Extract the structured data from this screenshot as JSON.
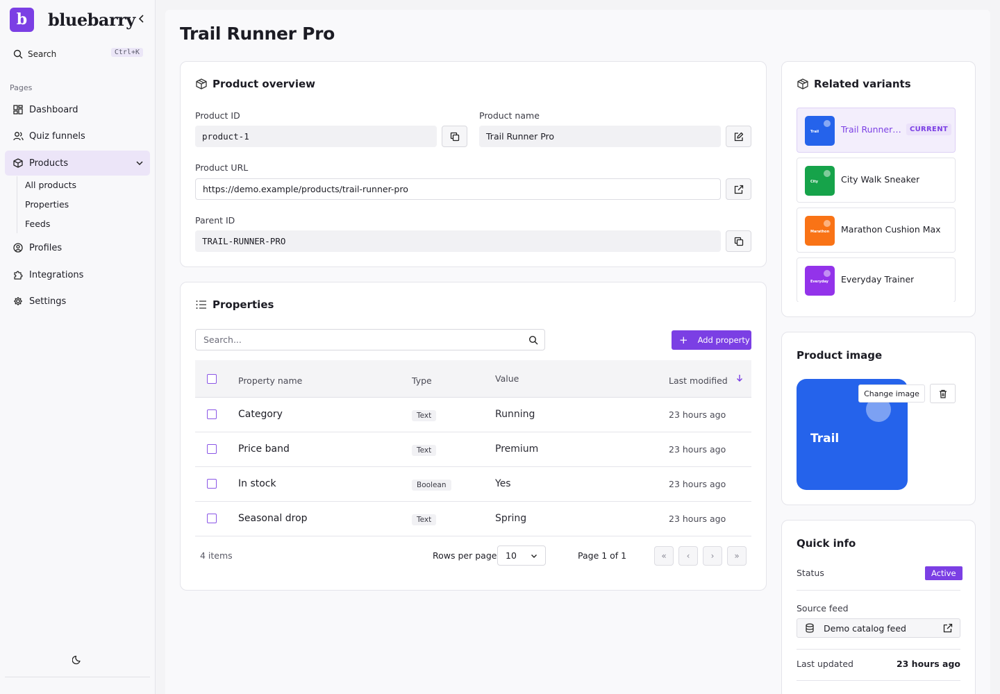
{
  "brand": {
    "logo_letter": "b",
    "name": "bluebarry",
    "accent": "#7b3fe4"
  },
  "sidebar": {
    "search_label": "Search",
    "search_shortcut": "Ctrl+K",
    "section_label": "Pages",
    "items": [
      {
        "label": "Dashboard",
        "icon": "dashboard-icon"
      },
      {
        "label": "Quiz funnels",
        "icon": "users-icon"
      },
      {
        "label": "Products",
        "icon": "box-icon",
        "active": true,
        "expanded": true
      },
      {
        "label": "Profiles",
        "icon": "user-circle-icon"
      },
      {
        "label": "Integrations",
        "icon": "puzzle-icon"
      },
      {
        "label": "Settings",
        "icon": "gear-icon"
      }
    ],
    "sub_items": [
      {
        "label": "All products"
      },
      {
        "label": "Properties"
      },
      {
        "label": "Feeds"
      }
    ]
  },
  "page": {
    "title": "Trail Runner Pro"
  },
  "overview": {
    "title": "Product overview",
    "product_id_label": "Product ID",
    "product_id": "product-1",
    "product_name_label": "Product name",
    "product_name": "Trail Runner Pro",
    "product_url_label": "Product URL",
    "product_url": "https://demo.example/products/trail-runner-pro",
    "parent_id_label": "Parent ID",
    "parent_id": "TRAIL-RUNNER-PRO"
  },
  "properties": {
    "title": "Properties",
    "search_placeholder": "Search...",
    "add_label": "Add property",
    "columns": {
      "name": "Property name",
      "type": "Type",
      "value": "Value",
      "modified": "Last modified"
    },
    "rows": [
      {
        "name": "Category",
        "type": "Text",
        "value": "Running",
        "modified": "23 hours ago"
      },
      {
        "name": "Price band",
        "type": "Text",
        "value": "Premium",
        "modified": "23 hours ago"
      },
      {
        "name": "In stock",
        "type": "Boolean",
        "value": "Yes",
        "modified": "23 hours ago"
      },
      {
        "name": "Seasonal drop",
        "type": "Text",
        "value": "Spring",
        "modified": "23 hours ago"
      }
    ],
    "item_count": "4 items",
    "rows_per_page_label": "Rows per page",
    "rows_per_page": "10",
    "page_label": "Page 1 of 1"
  },
  "variants": {
    "title": "Related variants",
    "items": [
      {
        "name": "Trail Runner Pro",
        "thumb_text": "Trail",
        "color": "#2563eb",
        "current": true,
        "badge": "CURRENT"
      },
      {
        "name": "City Walk Sneaker",
        "thumb_text": "City",
        "color": "#16a34a"
      },
      {
        "name": "Marathon Cushion Max",
        "thumb_text": "Marathon",
        "color": "#f97316"
      },
      {
        "name": "Everyday Trainer",
        "thumb_text": "Everyday",
        "color": "#9333ea"
      }
    ]
  },
  "product_image": {
    "title": "Product image",
    "image_text": "Trail",
    "color": "#2563eb",
    "change_label": "Change image"
  },
  "quick_info": {
    "title": "Quick info",
    "status_label": "Status",
    "status": "Active",
    "source_feed_label": "Source feed",
    "source_feed": "Demo catalog feed",
    "last_updated_label": "Last updated",
    "last_updated": "23 hours ago"
  }
}
